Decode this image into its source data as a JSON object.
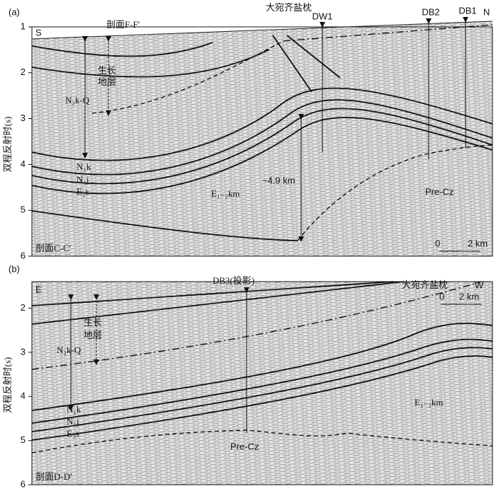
{
  "y_axis_label": "双程反射时(s)",
  "panels": [
    {
      "label": "(a)",
      "ylim": [
        1,
        6
      ],
      "yticks": [
        1,
        2,
        3,
        4,
        5,
        6
      ],
      "left_end": "S",
      "right_end": "N",
      "cross_section": "剖面F-F′",
      "salt": "大宛齐盐枕",
      "wells": [
        "DW1",
        "DB2",
        "DB1"
      ],
      "growth": [
        "生长",
        "地层"
      ],
      "units": [
        "N₂k-Q",
        "N₁k",
        "N₁j",
        "E₃s",
        "E₁₋₂km",
        "Pre-Cz"
      ],
      "thickness": "~4.9 km",
      "scale": [
        "0",
        "2 km"
      ],
      "section": "剖面C-C′"
    },
    {
      "label": "(b)",
      "ylim": [
        1.4,
        6
      ],
      "yticks": [
        2,
        3,
        4,
        5,
        6
      ],
      "left_end": "E",
      "right_end": "W",
      "salt": "大宛齐盐枕",
      "wells": [
        "DB3(投影)"
      ],
      "growth": [
        "生长",
        "地层"
      ],
      "units": [
        "N₂k-Q",
        "N₁k",
        "N₁j",
        "E₃s",
        "E₁₋₂km",
        "Pre-Cz"
      ],
      "scale": [
        "0",
        "2 km"
      ],
      "section": "剖面D-D′"
    }
  ]
}
